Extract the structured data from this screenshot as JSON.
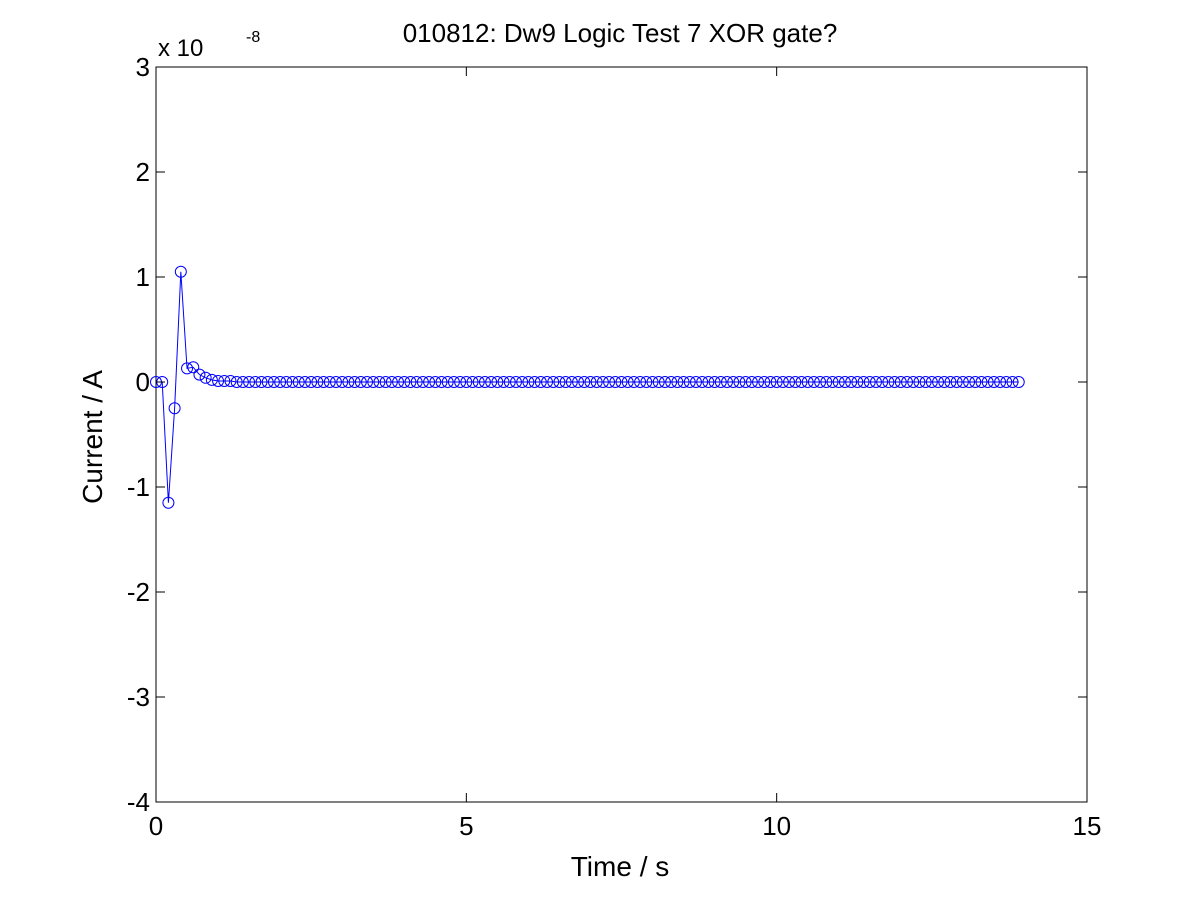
{
  "chart_data": {
    "type": "line",
    "title": "010812: Dw9 Logic Test 7 XOR gate?",
    "xlabel": "Time / s",
    "ylabel": "Current / A",
    "y_multiplier": {
      "base": "x 10",
      "exponent": "-8"
    },
    "xlim": [
      0,
      15
    ],
    "ylim": [
      -4,
      3
    ],
    "x_ticks": [
      0,
      5,
      10,
      15
    ],
    "x_tick_labels": [
      "0",
      "5",
      "10",
      "15"
    ],
    "y_ticks": [
      -4,
      -3,
      -2,
      -1,
      0,
      1,
      2,
      3
    ],
    "y_tick_labels": [
      "-4",
      "-3",
      "-2",
      "-1",
      "0",
      "1",
      "2",
      "3"
    ],
    "grid": false,
    "line_color": "#0000ff",
    "marker": "circle",
    "sampling_interval": 0.1,
    "series": [
      {
        "values": [
          0,
          0,
          -1.15,
          -0.25,
          1.05,
          0.13,
          0.14,
          0.07,
          0.04,
          0.02,
          0.01,
          0.01,
          0.01,
          0,
          0,
          0,
          0,
          0,
          0,
          0,
          0,
          0,
          0,
          0,
          0,
          0,
          0,
          0,
          0,
          0,
          0,
          0,
          0,
          0,
          0,
          0,
          0,
          0,
          0,
          0,
          0,
          0,
          0,
          0,
          0,
          0,
          0,
          0,
          0,
          0,
          0,
          0,
          0,
          0,
          0,
          0,
          0,
          0,
          0,
          0,
          0,
          0,
          0,
          0,
          0,
          0,
          0,
          0,
          0,
          0,
          0,
          0,
          0,
          0,
          0,
          0,
          0,
          0,
          0,
          0,
          0,
          0,
          0,
          0,
          0,
          0,
          0,
          0,
          0,
          0,
          0,
          0,
          0,
          0,
          0,
          0,
          0,
          0,
          0,
          0,
          0,
          0,
          0,
          0,
          0,
          0,
          0,
          0,
          0,
          0,
          0,
          0,
          0,
          0,
          0,
          0,
          0,
          0,
          0,
          0,
          0,
          0,
          0,
          0,
          0,
          0,
          0,
          0,
          0,
          0,
          0,
          0,
          0,
          0,
          0,
          0,
          0,
          0,
          0,
          0
        ]
      }
    ]
  }
}
